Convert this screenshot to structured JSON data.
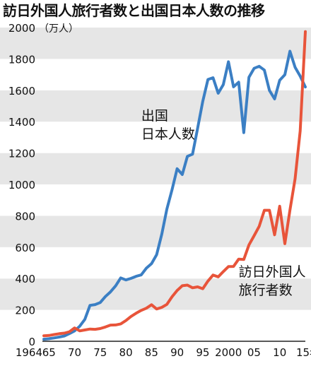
{
  "chart_data": {
    "type": "line",
    "title": "訪日外国人旅行者数と出国日本人数の推移",
    "y_unit": "（万人）",
    "ylim": [
      0,
      2000
    ],
    "y_ticks": [
      {
        "v": 0,
        "label": "0"
      },
      {
        "v": 200,
        "label": "200"
      },
      {
        "v": 400,
        "label": "400"
      },
      {
        "v": 600,
        "label": "600"
      },
      {
        "v": 800,
        "label": "800"
      },
      {
        "v": 1000,
        "label": "1000"
      },
      {
        "v": 1200,
        "label": "1200"
      },
      {
        "v": 1400,
        "label": "1400"
      },
      {
        "v": 1600,
        "label": "1600"
      },
      {
        "v": 1800,
        "label": "1800"
      },
      {
        "v": 2000,
        "label": "2000"
      }
    ],
    "xlim": [
      1964,
      2015
    ],
    "x_ticks": [
      {
        "v": 1964,
        "label": "1964"
      },
      {
        "v": 1965,
        "label": "65"
      },
      {
        "v": 1970,
        "label": "70"
      },
      {
        "v": 1975,
        "label": "75"
      },
      {
        "v": 1980,
        "label": "80"
      },
      {
        "v": 1985,
        "label": "85"
      },
      {
        "v": 1990,
        "label": "90"
      },
      {
        "v": 1995,
        "label": "95"
      },
      {
        "v": 2000,
        "label": "2000"
      },
      {
        "v": 2005,
        "label": "05"
      },
      {
        "v": 2010,
        "label": "10"
      },
      {
        "v": 2015,
        "label": "15年"
      }
    ],
    "grid": "horizontal bands",
    "x": [
      1964,
      1965,
      1966,
      1967,
      1968,
      1969,
      1970,
      1971,
      1972,
      1973,
      1974,
      1975,
      1976,
      1977,
      1978,
      1979,
      1980,
      1981,
      1982,
      1983,
      1984,
      1985,
      1986,
      1987,
      1988,
      1989,
      1990,
      1991,
      1992,
      1993,
      1994,
      1995,
      1996,
      1997,
      1998,
      1999,
      2000,
      2001,
      2002,
      2003,
      2004,
      2005,
      2006,
      2007,
      2008,
      2009,
      2010,
      2011,
      2012,
      2013,
      2014,
      2015
    ],
    "series": [
      {
        "name_lines": [
          "出国",
          "日本人数"
        ],
        "color": "#3b7fc4",
        "values": [
          13,
          16,
          21,
          27,
          34,
          49,
          66,
          96,
          139,
          229,
          234,
          247,
          285,
          315,
          353,
          404,
          391,
          401,
          414,
          423,
          466,
          495,
          552,
          683,
          843,
          966,
          1100,
          1063,
          1179,
          1193,
          1358,
          1530,
          1669,
          1680,
          1581,
          1636,
          1782,
          1622,
          1652,
          1330,
          1683,
          1740,
          1753,
          1729,
          1599,
          1545,
          1664,
          1699,
          1849,
          1747,
          1690,
          1621
        ]
      },
      {
        "name_lines": [
          "訪日外国人",
          "旅行者数"
        ],
        "color": "#e8543a",
        "values": [
          35,
          37,
          43,
          48,
          52,
          61,
          85,
          66,
          72,
          78,
          76,
          81,
          91,
          103,
          104,
          111,
          132,
          158,
          179,
          197,
          211,
          233,
          206,
          216,
          235,
          284,
          324,
          354,
          358,
          341,
          347,
          335,
          384,
          422,
          411,
          444,
          476,
          477,
          524,
          521,
          614,
          673,
          733,
          835,
          835,
          679,
          861,
          622,
          836,
          1036,
          1341,
          1974
        ]
      }
    ]
  }
}
